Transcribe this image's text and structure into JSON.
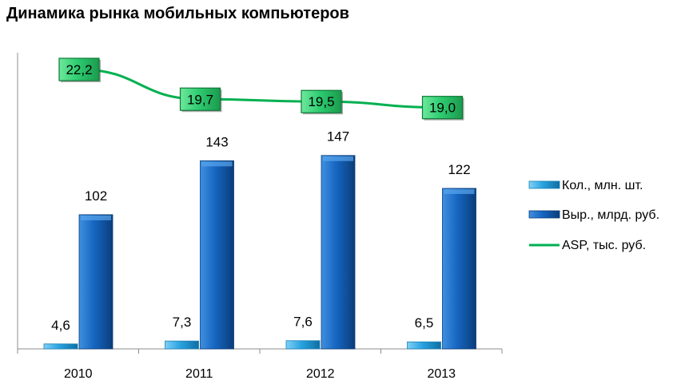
{
  "title": "Динамика рынка мобильных компьютеров",
  "colors": {
    "qty": "#29a3e0",
    "revenue": "#1565c0",
    "asp_line": "#00b050",
    "asp_box": "#2ecc71",
    "axis": "#8c8c8c"
  },
  "chart_data": {
    "type": "bar",
    "categories": [
      "2010",
      "2011",
      "2012",
      "2013"
    ],
    "series": [
      {
        "name": "Кол., млн. шт.",
        "type": "bar",
        "values": [
          4.6,
          7.3,
          7.6,
          6.5
        ],
        "labels": [
          "4,6",
          "7,3",
          "7,6",
          "6,5"
        ]
      },
      {
        "name": "Выр., млрд. руб.",
        "type": "bar",
        "values": [
          102,
          143,
          147,
          122
        ],
        "labels": [
          "102",
          "143",
          "147",
          "122"
        ]
      },
      {
        "name": "ASP, тыс. руб.",
        "type": "line",
        "values": [
          22.2,
          19.7,
          19.5,
          19.0
        ],
        "labels": [
          "22,2",
          "19,7",
          "19,5",
          "19,0"
        ]
      }
    ],
    "title": "Динамика рынка мобильных компьютеров",
    "xlabel": "",
    "ylabel": "",
    "ylim": [
      0,
      175
    ],
    "grid": false,
    "legend": "right"
  }
}
